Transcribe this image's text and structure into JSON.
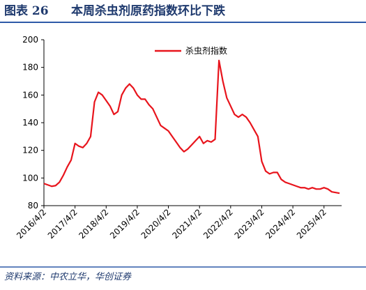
{
  "header": {
    "figure": "图表 26",
    "title": "本周杀虫剂原药指数环比下跌"
  },
  "chart_data": {
    "type": "line",
    "categories": [
      "2016/4/2",
      null,
      null,
      null,
      null,
      null,
      null,
      null,
      "2017/4/2",
      null,
      null,
      null,
      null,
      null,
      null,
      null,
      "2018/4/2",
      null,
      null,
      null,
      null,
      null,
      null,
      null,
      "2019/4/2",
      null,
      null,
      null,
      null,
      null,
      null,
      null,
      "2020/4/2",
      null,
      null,
      null,
      null,
      null,
      null,
      null,
      "2021/4/2",
      null,
      null,
      null,
      null,
      null,
      null,
      null,
      "2022/4/2",
      null,
      null,
      null,
      null,
      null,
      null,
      null,
      "2023/4/2",
      null,
      null,
      null,
      null,
      null,
      null,
      null,
      "2024/4/2",
      null,
      null,
      null,
      null,
      null,
      null,
      null,
      "2025/4/2",
      null,
      null,
      null,
      null
    ],
    "series": [
      {
        "name": "杀虫剂指数",
        "color": "#e8141c",
        "values": [
          96,
          95,
          94,
          94.5,
          97,
          102,
          108,
          113,
          125,
          123,
          122,
          125,
          130,
          155,
          162,
          160,
          156,
          152,
          146,
          148,
          160,
          165,
          168,
          165,
          160,
          157,
          157,
          153,
          150,
          144,
          138,
          136,
          134,
          130,
          126,
          122,
          119,
          121,
          124,
          127,
          130,
          125,
          127,
          126,
          128,
          185,
          170,
          158,
          152,
          146,
          144,
          146,
          144,
          140,
          135,
          130,
          112,
          105,
          103,
          104,
          104,
          99,
          97,
          96,
          95,
          94,
          93,
          93,
          92,
          93,
          92,
          92,
          93,
          92,
          90,
          89.5,
          89
        ]
      }
    ],
    "ylim": [
      80,
      200
    ],
    "yticks": [
      80,
      100,
      120,
      140,
      160,
      180,
      200
    ],
    "grid": false,
    "legend": "top"
  },
  "footer": {
    "source": "资料来源：中农立华，华创证券"
  }
}
